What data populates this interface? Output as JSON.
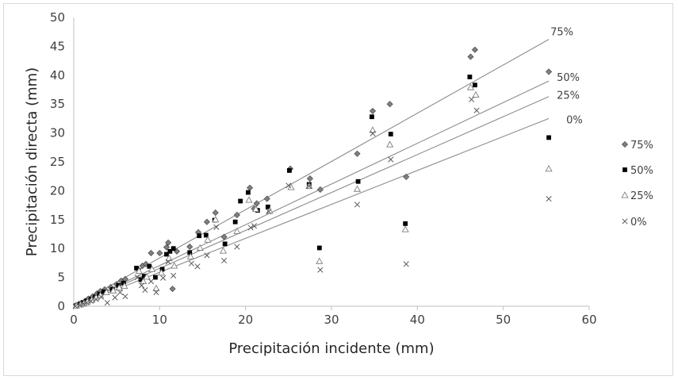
{
  "chart_data": {
    "type": "scatter",
    "title": "",
    "xlabel": "Precipitación incidente (mm)",
    "ylabel": "Precipitación directa (mm)",
    "xlim": [
      0,
      60
    ],
    "ylim": [
      0,
      50
    ],
    "xticks": [
      0,
      10,
      20,
      30,
      40,
      50,
      60
    ],
    "yticks": [
      0,
      5,
      10,
      15,
      20,
      25,
      30,
      35,
      40,
      45,
      50
    ],
    "grid": false,
    "legend_position": "right",
    "trendlines": [
      {
        "label": "75%",
        "x": [
          0,
          55.3
        ],
        "y": [
          0,
          46.2
        ]
      },
      {
        "label": "50%",
        "x": [
          0,
          55.3
        ],
        "y": [
          0,
          39.0
        ]
      },
      {
        "label": "25%",
        "x": [
          0,
          55.3
        ],
        "y": [
          0,
          36.3
        ]
      },
      {
        "label": "0%",
        "x": [
          0,
          55.3
        ],
        "y": [
          0,
          32.5
        ]
      }
    ],
    "series": [
      {
        "name": "75%",
        "marker": "diamond",
        "color": "#7f7f7f",
        "points": [
          [
            0.3,
            0.2
          ],
          [
            0.6,
            0.4
          ],
          [
            0.9,
            0.6
          ],
          [
            1.3,
            0.9
          ],
          [
            1.7,
            1.3
          ],
          [
            2.2,
            1.7
          ],
          [
            2.7,
            2.2
          ],
          [
            3.1,
            2.6
          ],
          [
            3.6,
            2.9
          ],
          [
            4.3,
            3.3
          ],
          [
            5.0,
            3.8
          ],
          [
            5.5,
            4.4
          ],
          [
            6.0,
            4.7
          ],
          [
            7.5,
            6.4
          ],
          [
            8.0,
            7.0
          ],
          [
            8.4,
            7.3
          ],
          [
            9.0,
            9.2
          ],
          [
            10.0,
            9.2
          ],
          [
            10.8,
            10.2
          ],
          [
            11.0,
            11.0
          ],
          [
            11.5,
            3.0
          ],
          [
            12.0,
            9.5
          ],
          [
            13.5,
            10.3
          ],
          [
            14.5,
            12.8
          ],
          [
            15.5,
            14.6
          ],
          [
            16.5,
            16.2
          ],
          [
            17.5,
            12.0
          ],
          [
            19.0,
            15.8
          ],
          [
            20.5,
            20.5
          ],
          [
            21.0,
            16.9
          ],
          [
            21.3,
            17.8
          ],
          [
            22.5,
            18.6
          ],
          [
            25.2,
            23.8
          ],
          [
            27.5,
            22.1
          ],
          [
            28.7,
            20.2
          ],
          [
            33.0,
            26.4
          ],
          [
            34.8,
            33.8
          ],
          [
            36.8,
            35.0
          ],
          [
            38.7,
            22.4
          ],
          [
            46.2,
            43.2
          ],
          [
            46.7,
            44.4
          ],
          [
            55.3,
            40.6
          ]
        ]
      },
      {
        "name": "50%",
        "marker": "square",
        "color": "#000000",
        "points": [
          [
            0.3,
            0.1
          ],
          [
            0.7,
            0.3
          ],
          [
            1.1,
            0.6
          ],
          [
            1.5,
            0.9
          ],
          [
            2.0,
            1.2
          ],
          [
            2.5,
            1.6
          ],
          [
            3.0,
            2.1
          ],
          [
            3.5,
            2.5
          ],
          [
            4.5,
            2.9
          ],
          [
            5.2,
            3.6
          ],
          [
            5.8,
            4.0
          ],
          [
            7.3,
            6.6
          ],
          [
            7.8,
            4.6
          ],
          [
            8.2,
            5.2
          ],
          [
            8.8,
            6.9
          ],
          [
            9.5,
            5.0
          ],
          [
            10.3,
            6.4
          ],
          [
            10.8,
            9.0
          ],
          [
            11.2,
            9.5
          ],
          [
            11.6,
            10.0
          ],
          [
            13.5,
            9.3
          ],
          [
            14.6,
            12.2
          ],
          [
            15.4,
            12.3
          ],
          [
            16.4,
            14.9
          ],
          [
            17.6,
            10.8
          ],
          [
            18.8,
            14.6
          ],
          [
            19.4,
            18.2
          ],
          [
            20.3,
            19.7
          ],
          [
            21.4,
            16.6
          ],
          [
            22.6,
            17.2
          ],
          [
            25.1,
            23.5
          ],
          [
            27.4,
            21.1
          ],
          [
            28.6,
            10.1
          ],
          [
            33.1,
            21.6
          ],
          [
            34.7,
            32.8
          ],
          [
            36.9,
            29.8
          ],
          [
            38.6,
            14.3
          ],
          [
            46.1,
            39.7
          ],
          [
            46.7,
            38.3
          ],
          [
            55.3,
            29.2
          ]
        ]
      },
      {
        "name": "25%",
        "marker": "triangle",
        "color": "#7f7f7f",
        "points": [
          [
            0.3,
            0.1
          ],
          [
            0.8,
            0.3
          ],
          [
            1.2,
            0.5
          ],
          [
            1.6,
            0.8
          ],
          [
            2.1,
            1.1
          ],
          [
            2.6,
            1.5
          ],
          [
            3.1,
            1.9
          ],
          [
            3.8,
            2.4
          ],
          [
            4.6,
            2.7
          ],
          [
            5.3,
            3.2
          ],
          [
            5.9,
            3.5
          ],
          [
            7.6,
            6.1
          ],
          [
            8.1,
            4.3
          ],
          [
            8.5,
            5.1
          ],
          [
            9.1,
            6.4
          ],
          [
            9.6,
            3.1
          ],
          [
            10.2,
            5.8
          ],
          [
            11.1,
            8.3
          ],
          [
            11.7,
            7.0
          ],
          [
            13.6,
            8.6
          ],
          [
            14.7,
            10.1
          ],
          [
            15.6,
            11.5
          ],
          [
            16.5,
            15.0
          ],
          [
            17.4,
            9.6
          ],
          [
            19.0,
            13.0
          ],
          [
            20.4,
            18.4
          ],
          [
            21.2,
            16.8
          ],
          [
            22.8,
            16.5
          ],
          [
            25.3,
            20.6
          ],
          [
            27.4,
            20.8
          ],
          [
            28.6,
            7.8
          ],
          [
            33.0,
            20.3
          ],
          [
            34.8,
            30.5
          ],
          [
            36.8,
            28.0
          ],
          [
            38.6,
            13.3
          ],
          [
            46.2,
            37.9
          ],
          [
            46.8,
            36.6
          ],
          [
            55.3,
            23.8
          ]
        ]
      },
      {
        "name": "0%",
        "marker": "x",
        "color": "#595959",
        "points": [
          [
            0.2,
            0.0
          ],
          [
            0.7,
            0.2
          ],
          [
            1.1,
            0.4
          ],
          [
            1.5,
            0.6
          ],
          [
            2.0,
            0.9
          ],
          [
            2.6,
            1.2
          ],
          [
            3.2,
            1.6
          ],
          [
            3.9,
            0.6
          ],
          [
            4.8,
            1.5
          ],
          [
            5.4,
            2.4
          ],
          [
            6.0,
            1.7
          ],
          [
            7.4,
            5.0
          ],
          [
            7.9,
            3.6
          ],
          [
            8.3,
            2.8
          ],
          [
            9.0,
            4.3
          ],
          [
            9.6,
            2.4
          ],
          [
            10.4,
            4.9
          ],
          [
            11.0,
            7.7
          ],
          [
            11.6,
            5.3
          ],
          [
            13.7,
            7.4
          ],
          [
            14.4,
            6.9
          ],
          [
            15.5,
            8.8
          ],
          [
            16.6,
            13.7
          ],
          [
            17.5,
            7.9
          ],
          [
            19.0,
            10.3
          ],
          [
            20.6,
            13.6
          ],
          [
            21.0,
            13.9
          ],
          [
            22.7,
            16.4
          ],
          [
            25.0,
            20.9
          ],
          [
            27.4,
            20.8
          ],
          [
            28.7,
            6.3
          ],
          [
            33.0,
            17.6
          ],
          [
            34.8,
            29.9
          ],
          [
            36.9,
            25.4
          ],
          [
            38.7,
            7.3
          ],
          [
            46.3,
            35.8
          ],
          [
            46.9,
            33.9
          ],
          [
            55.3,
            18.6
          ]
        ]
      }
    ]
  }
}
